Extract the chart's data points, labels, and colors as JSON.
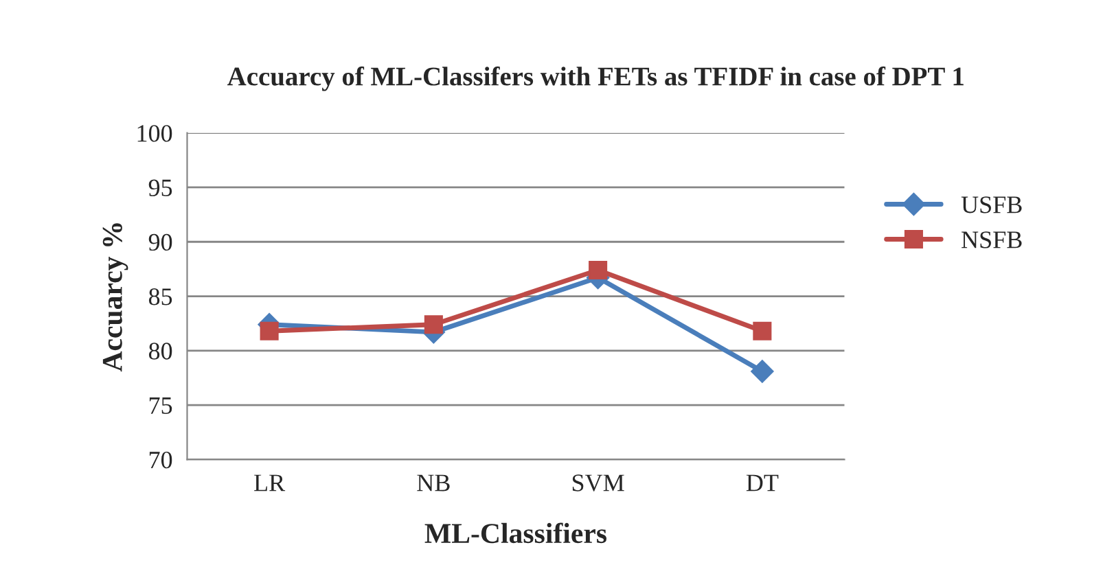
{
  "chart_data": {
    "type": "line",
    "title": "Accuarcy of ML-Classifers with FETs as TFIDF in case of DPT 1",
    "xlabel": "ML-Classifiers",
    "ylabel": "Accuarcy %",
    "categories": [
      "LR",
      "NB",
      "SVM",
      "DT"
    ],
    "series": [
      {
        "name": "USFB",
        "color": "#4a7ebb",
        "marker": "diamond",
        "values": [
          82.4,
          81.7,
          86.7,
          78.1
        ]
      },
      {
        "name": "NSFB",
        "color": "#be4b48",
        "marker": "square",
        "values": [
          81.8,
          82.4,
          87.4,
          81.8
        ]
      }
    ],
    "ylim": [
      70,
      100
    ],
    "yticks": [
      70,
      75,
      80,
      85,
      90,
      95,
      100
    ],
    "grid": "y",
    "legend": "right"
  }
}
